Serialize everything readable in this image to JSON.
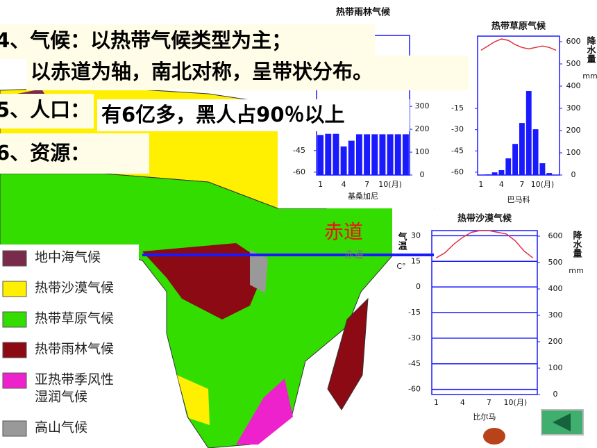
{
  "slide": {
    "lines": {
      "climate": "4、气候：以热带气候类型为主；",
      "climate_detail": "以赤道为轴，南北对称，呈带状分布。",
      "population_label": "5、人口：",
      "population": "有6亿多，黑人占90％以上",
      "resources": "6、资源："
    },
    "equator": "赤道",
    "equator_map": "赤道",
    "legend": [
      {
        "label": [
          "地中海气候"
        ],
        "color": "#7a2a4a"
      },
      {
        "label": [
          "热带沙漠气候"
        ],
        "color": "#ffef00"
      },
      {
        "label": [
          "热带草原气候"
        ],
        "color": "#33dd00"
      },
      {
        "label": [
          "热带雨林气候"
        ],
        "color": "#8b0a14"
      },
      {
        "label": [
          "亚热带季风性",
          "湿润气候"
        ],
        "color": "#ee22cc"
      },
      {
        "label": [
          "高山气候"
        ],
        "color": "#999999"
      }
    ]
  },
  "chart_data": [
    {
      "type": "climate",
      "title": "热带雨林气候",
      "station": "基桑加尼",
      "categories": [
        "1",
        null,
        null,
        "4",
        null,
        null,
        "7",
        null,
        null,
        "10(月)",
        null,
        null
      ],
      "ylim": [
        -62,
        35
      ],
      "yticks": [
        -45,
        -60
      ],
      "y2lim": [
        0,
        610
      ],
      "y2ticks": [
        300,
        200,
        100,
        0
      ],
      "grid": false,
      "series": [
        {
          "type": "bar",
          "axis": "y2",
          "color": "#1a1aff",
          "values": [
            175,
            180,
            180,
            125,
            150,
            178,
            178,
            178,
            178,
            178,
            178,
            178
          ]
        }
      ]
    },
    {
      "type": "climate",
      "title": "热带草原气候",
      "station": "巴马科",
      "categories": [
        "1",
        null,
        null,
        "4",
        null,
        null,
        "7",
        null,
        null,
        "10(月)",
        null,
        null
      ],
      "ylim": [
        -62,
        36
      ],
      "yticks": [
        -15,
        -30,
        -45,
        -60
      ],
      "y2lim": [
        0,
        625
      ],
      "y2ticks": [
        600,
        500,
        400,
        300,
        200,
        100,
        0
      ],
      "grid": false,
      "y2label": "降水量",
      "y2unit": "mm",
      "series": [
        {
          "type": "bar",
          "axis": "y2",
          "color": "#1a1aff",
          "values": [
            1,
            3,
            12,
            22,
            75,
            140,
            234,
            378,
            206,
            53,
            9,
            1
          ]
        },
        {
          "type": "line",
          "color": "#e03040",
          "values": [
            26,
            29,
            32,
            34,
            33,
            30,
            28,
            27,
            28,
            29,
            28,
            26
          ]
        }
      ]
    },
    {
      "type": "climate",
      "title": "热带沙漠气候",
      "station": "比尔马",
      "categories": [
        "1",
        null,
        null,
        "4",
        null,
        null,
        "7",
        null,
        null,
        "10(月)",
        null,
        null
      ],
      "ylim": [
        -63,
        33
      ],
      "yticks": [
        30,
        15,
        0,
        -15,
        -30,
        -45,
        -60
      ],
      "y2lim": [
        0,
        621
      ],
      "y2ticks": [
        600,
        500,
        400,
        300,
        200,
        100,
        0
      ],
      "grid": true,
      "ylabel": "气温",
      "yunit": "C°",
      "y2label": "降水量",
      "y2unit": "mm",
      "series": [
        {
          "type": "line",
          "color": "#e03040",
          "values": [
            17,
            20,
            25,
            29,
            32,
            33,
            33,
            32,
            31,
            27,
            21,
            17
          ]
        }
      ]
    }
  ]
}
